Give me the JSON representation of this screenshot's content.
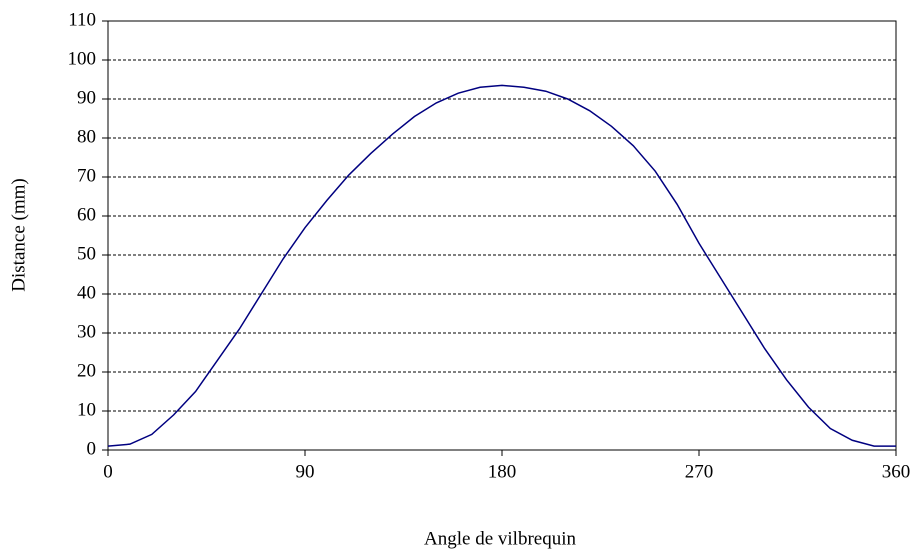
{
  "chart_data": {
    "type": "line",
    "x_label": "Angle de vilbrequin",
    "y_label": "Distance (mm)",
    "x": [
      0,
      10,
      20,
      30,
      40,
      50,
      60,
      70,
      80,
      90,
      100,
      110,
      120,
      130,
      140,
      150,
      160,
      170,
      180,
      190,
      200,
      210,
      220,
      230,
      240,
      250,
      260,
      270,
      280,
      290,
      300,
      310,
      320,
      330,
      340,
      350,
      360
    ],
    "series": [
      {
        "color": "#000080",
        "values": [
          1,
          1.5,
          4,
          9,
          15,
          23,
          31,
          40,
          49,
          57,
          64,
          70.5,
          76,
          81,
          85.5,
          89,
          91.5,
          93,
          93.5,
          93,
          92,
          90,
          87,
          83,
          78,
          71.5,
          63,
          53,
          44,
          35,
          26,
          18,
          11,
          5.5,
          2.5,
          1,
          1
        ]
      }
    ],
    "xlim": [
      0,
      360
    ],
    "xticks": [
      0,
      90,
      180,
      270,
      360
    ],
    "ylim": [
      0,
      110
    ],
    "yticks": [
      0,
      10,
      20,
      30,
      40,
      50,
      60,
      70,
      80,
      90,
      100,
      110
    ],
    "grid": true
  }
}
